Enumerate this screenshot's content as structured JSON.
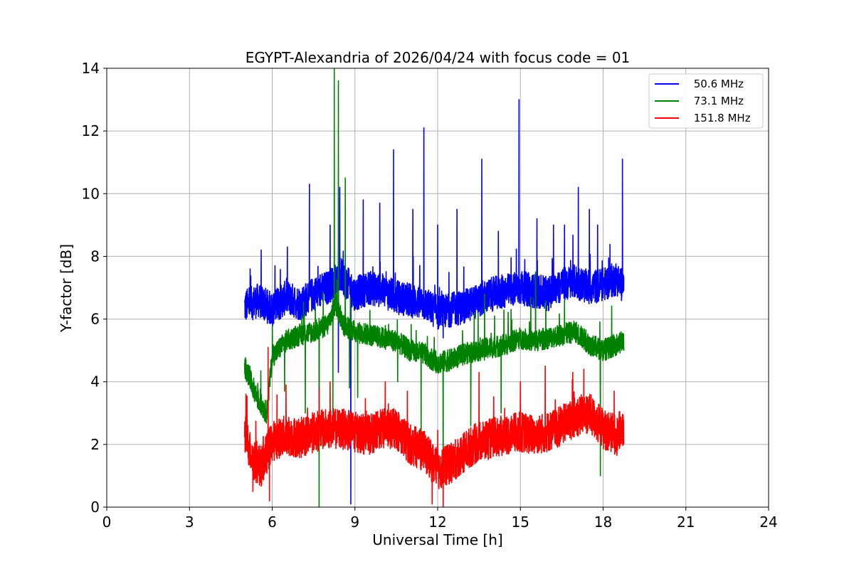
{
  "chart_data": {
    "type": "line",
    "title": "EGYPT-Alexandria of 2026/04/24 with focus code = 01",
    "xlabel": "Universal Time [h]",
    "ylabel": "Y-factor [dB]",
    "xlim": [
      0,
      24
    ],
    "ylim": [
      0,
      14
    ],
    "xticks": [
      0,
      3,
      6,
      9,
      12,
      15,
      18,
      21,
      24
    ],
    "yticks": [
      0,
      2,
      4,
      6,
      8,
      10,
      12,
      14
    ],
    "grid": true,
    "legend_position": "top-right",
    "series": [
      {
        "name": " 50.6 MHz",
        "color": "#0000ff",
        "x": [
          5.0,
          5.5,
          6.0,
          6.5,
          7.0,
          7.5,
          8.0,
          8.5,
          9.0,
          9.5,
          10.0,
          10.5,
          11.0,
          11.5,
          12.0,
          12.5,
          13.0,
          13.5,
          14.0,
          14.5,
          15.0,
          15.5,
          16.0,
          16.5,
          17.0,
          17.5,
          18.0,
          18.5,
          18.75
        ],
        "y": [
          6.4,
          6.6,
          6.3,
          6.7,
          6.5,
          6.8,
          7.0,
          7.4,
          6.8,
          7.0,
          6.9,
          6.7,
          6.6,
          6.5,
          6.2,
          6.3,
          6.4,
          6.6,
          6.8,
          6.9,
          7.0,
          6.9,
          6.8,
          7.1,
          7.2,
          7.0,
          7.1,
          7.3,
          7.0
        ],
        "spikes": [
          [
            5.2,
            7.6
          ],
          [
            5.6,
            8.2
          ],
          [
            6.1,
            7.7
          ],
          [
            7.35,
            10.3
          ],
          [
            8.1,
            9.0
          ],
          [
            8.45,
            10.2
          ],
          [
            9.3,
            9.8
          ],
          [
            9.9,
            9.7
          ],
          [
            10.4,
            11.4
          ],
          [
            11.1,
            9.5
          ],
          [
            11.5,
            12.1
          ],
          [
            12.0,
            9.0
          ],
          [
            12.7,
            9.5
          ],
          [
            13.6,
            11.1
          ],
          [
            14.2,
            8.8
          ],
          [
            14.95,
            13.0
          ],
          [
            15.6,
            9.2
          ],
          [
            16.2,
            9.0
          ],
          [
            16.6,
            9.0
          ],
          [
            17.1,
            10.2
          ],
          [
            17.5,
            9.5
          ],
          [
            17.8,
            9.0
          ],
          [
            18.7,
            11.1
          ]
        ],
        "dips": [
          [
            8.4,
            4.3
          ],
          [
            8.85,
            0.1
          ],
          [
            12.2,
            5.4
          ]
        ]
      },
      {
        "name": " 73.1 MHz",
        "color": "#008000",
        "x": [
          5.0,
          5.5,
          5.8,
          6.0,
          6.5,
          7.0,
          7.5,
          8.0,
          8.3,
          8.6,
          9.0,
          9.5,
          10.0,
          10.5,
          11.0,
          11.5,
          12.0,
          12.5,
          13.0,
          13.5,
          14.0,
          14.5,
          15.0,
          15.5,
          16.0,
          16.5,
          17.0,
          17.5,
          18.0,
          18.5,
          18.75
        ],
        "y": [
          4.5,
          3.4,
          3.0,
          4.8,
          5.3,
          5.5,
          5.6,
          5.8,
          6.5,
          5.8,
          5.6,
          5.5,
          5.4,
          5.3,
          5.0,
          4.9,
          4.6,
          4.7,
          4.9,
          5.0,
          5.1,
          5.2,
          5.4,
          5.3,
          5.4,
          5.5,
          5.6,
          5.2,
          5.0,
          5.2,
          5.3
        ],
        "spikes": [
          [
            8.25,
            14.0
          ],
          [
            8.4,
            13.6
          ],
          [
            8.65,
            10.5
          ],
          [
            13.7,
            6.8
          ],
          [
            15.55,
            7.5
          ],
          [
            16.6,
            6.6
          ]
        ],
        "dips": [
          [
            6.45,
            3.7
          ],
          [
            7.2,
            3.0
          ],
          [
            7.7,
            0.0
          ],
          [
            8.2,
            3.0
          ],
          [
            8.8,
            3.8
          ],
          [
            9.1,
            3.5
          ],
          [
            10.55,
            4.0
          ],
          [
            11.4,
            2.3
          ],
          [
            12.2,
            0.0
          ],
          [
            13.2,
            2.6
          ],
          [
            14.3,
            3.0
          ],
          [
            17.9,
            1.0
          ]
        ]
      },
      {
        "name": " 151.8 MHz",
        "color": "#ff0000",
        "x": [
          5.0,
          5.3,
          5.6,
          6.0,
          6.5,
          7.0,
          7.5,
          8.0,
          8.5,
          9.0,
          9.5,
          10.0,
          10.5,
          11.0,
          11.5,
          12.0,
          12.5,
          13.0,
          13.5,
          14.0,
          14.5,
          15.0,
          15.5,
          16.0,
          16.5,
          17.0,
          17.5,
          18.0,
          18.5,
          18.75
        ],
        "y": [
          2.4,
          1.5,
          1.3,
          2.1,
          2.3,
          2.2,
          2.4,
          2.5,
          2.5,
          2.4,
          2.3,
          2.5,
          2.5,
          2.0,
          1.8,
          1.2,
          1.4,
          1.8,
          2.1,
          2.2,
          2.3,
          2.4,
          2.3,
          2.4,
          2.6,
          2.9,
          3.0,
          2.5,
          2.3,
          2.6
        ],
        "spikes": [
          [
            5.05,
            3.6
          ],
          [
            5.85,
            5.1
          ],
          [
            6.5,
            3.9
          ],
          [
            7.7,
            3.8
          ],
          [
            8.1,
            4.0
          ],
          [
            10.1,
            4.0
          ],
          [
            10.9,
            3.7
          ],
          [
            13.5,
            4.3
          ],
          [
            15.0,
            4.0
          ],
          [
            15.9,
            4.5
          ],
          [
            16.9,
            4.3
          ],
          [
            17.3,
            4.4
          ],
          [
            18.4,
            3.7
          ]
        ],
        "dips": [
          [
            5.3,
            0.5
          ],
          [
            5.9,
            0.2
          ],
          [
            11.8,
            0.1
          ],
          [
            12.2,
            0.0
          ]
        ]
      }
    ]
  }
}
